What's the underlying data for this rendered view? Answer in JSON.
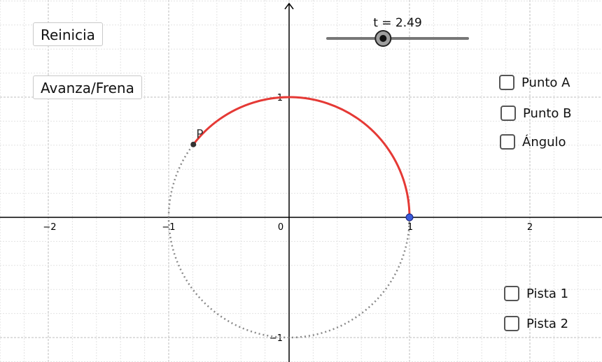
{
  "buttons": {
    "reset_label": "Reinicia",
    "play_label": "Avanza/Frena"
  },
  "slider": {
    "name": "t",
    "value": 2.49,
    "display": "t = 2.49",
    "min": 0,
    "max": 6.28
  },
  "checkboxes": {
    "punto_a": "Punto A",
    "punto_b": "Punto B",
    "angulo": "Ángulo",
    "pista1": "Pista 1",
    "pista2": "Pista 2"
  },
  "graph": {
    "x_ticks": [
      "−2",
      "−1",
      "0",
      "1",
      "2"
    ],
    "y_ticks": [
      "1",
      "−1"
    ],
    "point_label": "P",
    "point_angle": 2.49,
    "arc_color": "#e53935",
    "dotted_color": "#888888",
    "start_point_color": "#3b5bdb",
    "point_color": "#333333"
  }
}
